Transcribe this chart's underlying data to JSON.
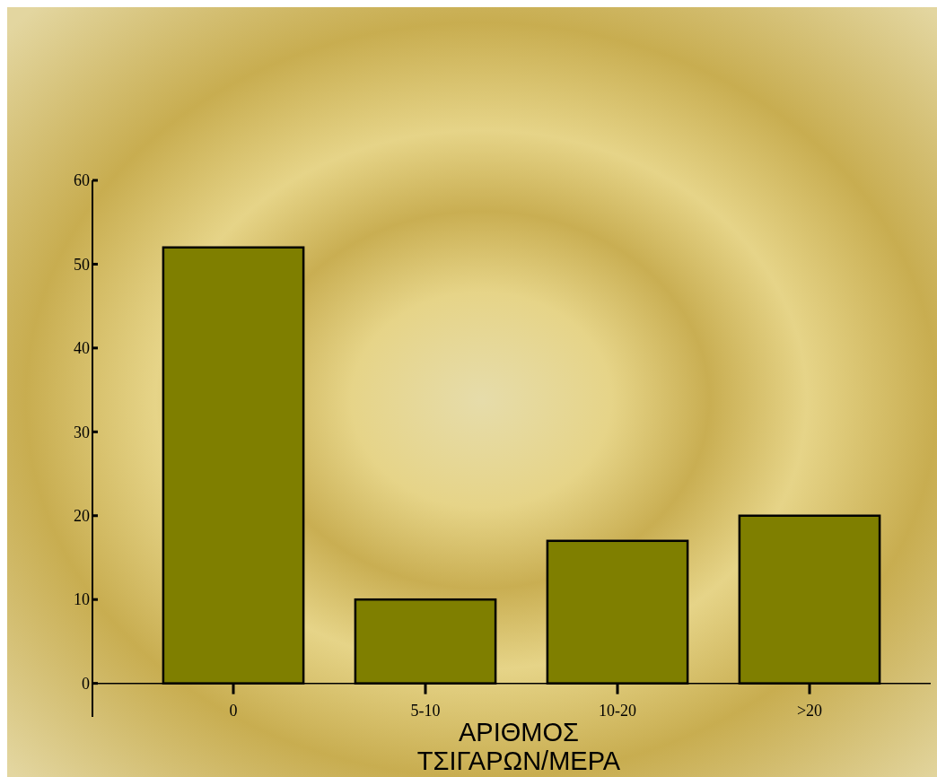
{
  "chart_data": {
    "type": "bar",
    "xlabel": "ΑΡΙΘΜΟΣ ΤΣΙΓΑΡΩΝ/ΜΕΡΑ",
    "categories": [
      "0",
      "5-10",
      "10-20",
      ">20"
    ],
    "values": [
      52,
      10,
      17,
      20
    ],
    "colors": [
      "#7f7f00",
      "#7f7f00",
      "#7f7f00",
      "#7f7f00"
    ],
    "ylim": [
      -4,
      60
    ],
    "yticks": [
      0,
      10,
      20,
      30,
      40,
      50,
      60
    ]
  }
}
